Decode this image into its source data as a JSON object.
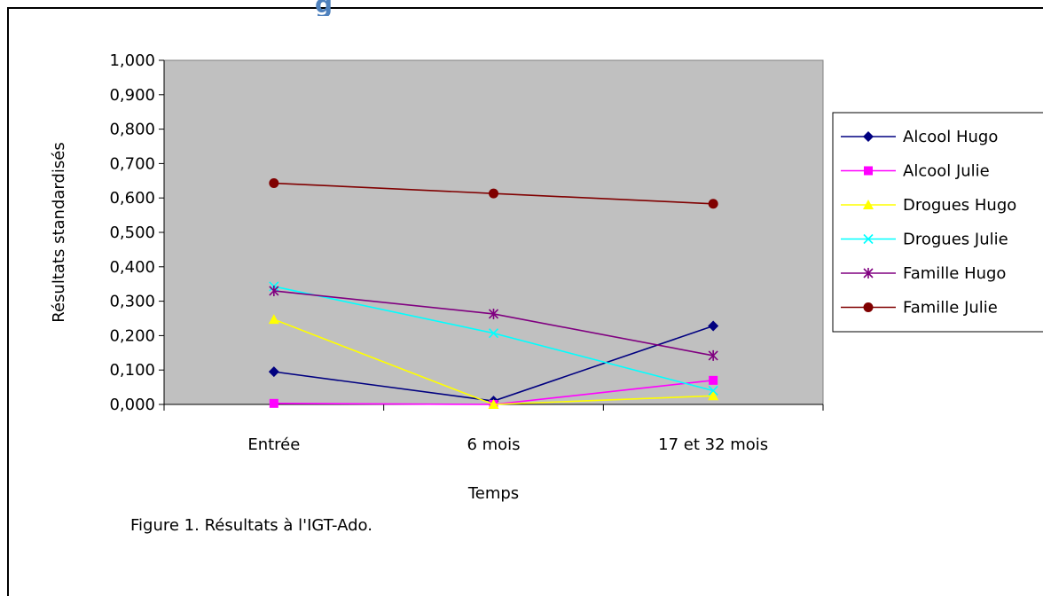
{
  "heading_fragment": "g",
  "caption": "Figure 1. Résultats à l'IGT-Ado.",
  "chart_data": {
    "type": "line",
    "title": "",
    "xlabel": "Temps",
    "ylabel": "Résultats standardisés",
    "categories": [
      "Entrée",
      "6 mois",
      "17 et 32 mois"
    ],
    "ylim": [
      0,
      1
    ],
    "yticks": [
      "0,000",
      "0,100",
      "0,200",
      "0,300",
      "0,400",
      "0,500",
      "0,600",
      "0,700",
      "0,800",
      "0,900",
      "1,000"
    ],
    "grid": false,
    "plot_background": "#c0c0c0",
    "legend_position": "right",
    "series": [
      {
        "name": "Alcool Hugo",
        "values": [
          0.095,
          0.01,
          0.228
        ],
        "color": "#000080",
        "marker": "diamond"
      },
      {
        "name": "Alcool Julie",
        "values": [
          0.003,
          0.0,
          0.07
        ],
        "color": "#ff00ff",
        "marker": "square"
      },
      {
        "name": "Drogues Hugo",
        "values": [
          0.247,
          0.0,
          0.025
        ],
        "color": "#ffff00",
        "marker": "triangle"
      },
      {
        "name": "Drogues Julie",
        "values": [
          0.343,
          0.207,
          0.04
        ],
        "color": "#00ffff",
        "marker": "x"
      },
      {
        "name": "Famille Hugo",
        "values": [
          0.33,
          0.263,
          0.142
        ],
        "color": "#800080",
        "marker": "star"
      },
      {
        "name": "Famille Julie",
        "values": [
          0.643,
          0.613,
          0.583
        ],
        "color": "#800000",
        "marker": "circle"
      }
    ]
  }
}
